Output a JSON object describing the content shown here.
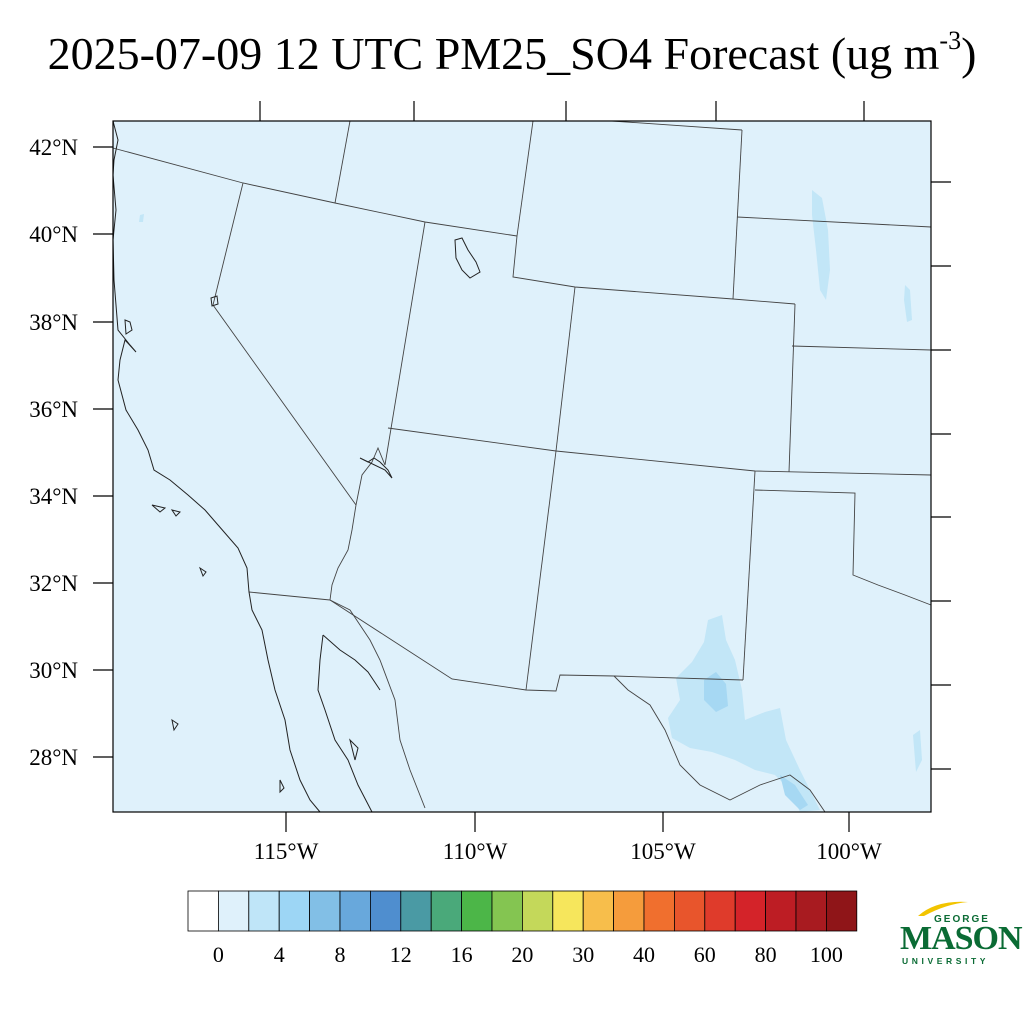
{
  "title": {
    "main": "2025-07-09 12 UTC PM25_SO4 Forecast (ug m",
    "superscript": "-3",
    "close": ")"
  },
  "map": {
    "background_color": "#dff1fb",
    "light_blue": "#c2e6f7",
    "mid_blue": "#a2d6f2",
    "lat_labels": [
      "42°N",
      "40°N",
      "38°N",
      "36°N",
      "34°N",
      "32°N",
      "30°N",
      "28°N"
    ],
    "lon_labels": [
      "115°W",
      "110°W",
      "105°W",
      "100°W"
    ]
  },
  "colorbar": {
    "colors": [
      "#ffffff",
      "#dff1fb",
      "#bfe5f8",
      "#9dd6f5",
      "#82bfe6",
      "#68a8dc",
      "#4f8ecf",
      "#4a9aa4",
      "#4aa97a",
      "#4cb648",
      "#84c551",
      "#c4d85a",
      "#f6e65c",
      "#f7be4b",
      "#f59c3c",
      "#f06f2e",
      "#e8552c",
      "#df3b2b",
      "#d42329",
      "#bd1d24",
      "#a81b20",
      "#8f1518"
    ],
    "labels": [
      "0",
      "4",
      "8",
      "12",
      "16",
      "20",
      "30",
      "40",
      "60",
      "80",
      "100"
    ]
  },
  "logo": {
    "line1": "GEORGE",
    "line2": "MASON",
    "line3": "UNIVERSITY",
    "green": "#0a6b34",
    "gold": "#f2c400"
  }
}
